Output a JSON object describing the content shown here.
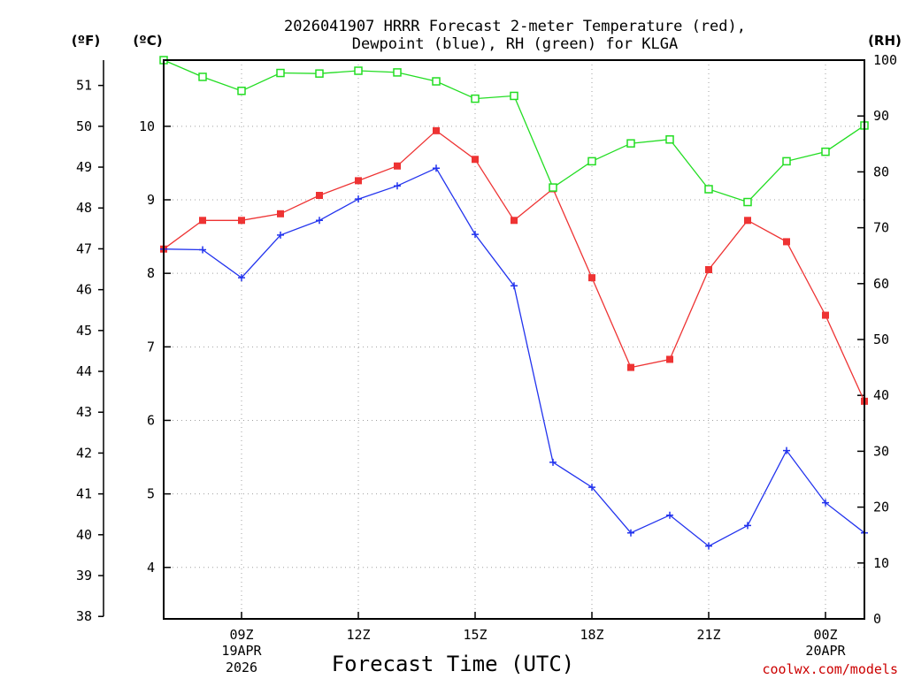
{
  "chart_data": {
    "type": "line",
    "title_line1": "2026041907 HRRR Forecast 2-meter Temperature (red),",
    "title_line2": "Dewpoint (blue), RH (green) for KLGA",
    "xlabel": "Forecast Time (UTC)",
    "credit": "coolwx.com/models",
    "units": {
      "fahrenheit": "(ºF)",
      "celsius": "(ºC)",
      "rh": "(RH)"
    },
    "x_hours": [
      7,
      8,
      9,
      10,
      11,
      12,
      13,
      14,
      15,
      16,
      17,
      18,
      19,
      20,
      21,
      22,
      23,
      24,
      25
    ],
    "x_range": [
      7,
      25
    ],
    "x_ticks": [
      {
        "hour": 9,
        "label": "09Z",
        "sub1": "19APR",
        "sub2": "2026"
      },
      {
        "hour": 12,
        "label": "12Z",
        "sub1": "",
        "sub2": ""
      },
      {
        "hour": 15,
        "label": "15Z",
        "sub1": "",
        "sub2": ""
      },
      {
        "hour": 18,
        "label": "18Z",
        "sub1": "",
        "sub2": ""
      },
      {
        "hour": 21,
        "label": "21Z",
        "sub1": "",
        "sub2": ""
      },
      {
        "hour": 24,
        "label": "00Z",
        "sub1": "20APR",
        "sub2": ""
      }
    ],
    "celsius_range": [
      3.3,
      10.9
    ],
    "celsius_ticks": [
      "4",
      "5",
      "6",
      "7",
      "8",
      "9",
      "10"
    ],
    "fahrenheit_ticks": [
      "38",
      "39",
      "40",
      "41",
      "42",
      "43",
      "44",
      "45",
      "46",
      "47",
      "48",
      "49",
      "50",
      "51"
    ],
    "rh_range": [
      0,
      100
    ],
    "rh_ticks": [
      "0",
      "10",
      "20",
      "30",
      "40",
      "50",
      "60",
      "70",
      "80",
      "90",
      "100"
    ],
    "series": [
      {
        "name": "Temperature",
        "unit": "C",
        "color": "#ee3333",
        "marker": "filled-square",
        "values": [
          8.33,
          8.72,
          8.72,
          8.81,
          9.06,
          9.26,
          9.46,
          9.94,
          9.55,
          8.72,
          9.15,
          7.94,
          6.72,
          6.83,
          8.05,
          8.72,
          8.43,
          7.43,
          6.26
        ]
      },
      {
        "name": "Dewpoint",
        "unit": "C",
        "color": "#2233ee",
        "marker": "plus",
        "values": [
          8.33,
          8.32,
          7.94,
          8.52,
          8.72,
          9.01,
          9.19,
          9.43,
          8.53,
          7.83,
          5.43,
          5.09,
          4.47,
          4.71,
          4.29,
          4.57,
          5.59,
          4.88,
          4.47
        ]
      },
      {
        "name": "RH",
        "unit": "%",
        "color": "#22dd22",
        "marker": "open-square",
        "values": [
          100,
          97,
          94.5,
          97.7,
          97.6,
          98.1,
          97.8,
          96.2,
          93.1,
          93.6,
          77.2,
          81.9,
          85.1,
          85.8,
          76.9,
          74.6,
          81.9,
          83.6,
          88.3
        ]
      }
    ]
  }
}
